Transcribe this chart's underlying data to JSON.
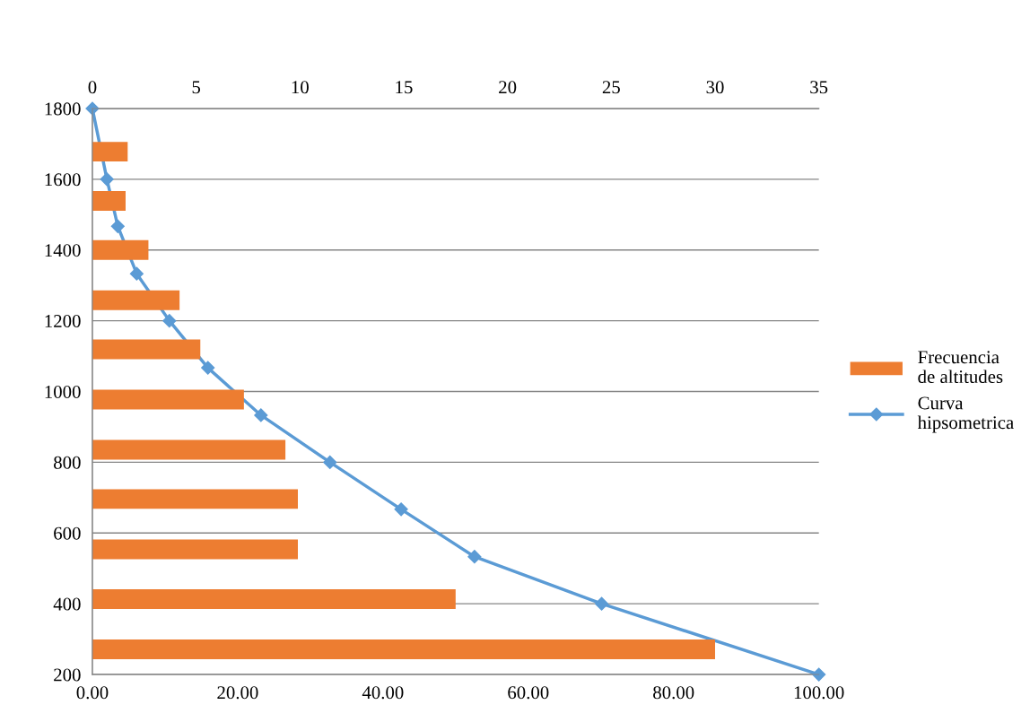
{
  "chart_data": {
    "type": "bar",
    "orientation": "horizontal",
    "ylim": [
      200,
      1800
    ],
    "yticks": [
      200,
      400,
      600,
      800,
      1000,
      1200,
      1400,
      1600,
      1800
    ],
    "xlim": [
      0,
      100
    ],
    "xticks": [
      {
        "value": 0,
        "label": "0.00"
      },
      {
        "value": 20,
        "label": "20.00"
      },
      {
        "value": 40,
        "label": "40.00"
      },
      {
        "value": 60,
        "label": "60.00"
      },
      {
        "value": 80,
        "label": "80.00"
      },
      {
        "value": 100,
        "label": "100.00"
      }
    ],
    "x2lim": [
      0,
      35
    ],
    "x2ticks": [
      0,
      5,
      10,
      15,
      20,
      25,
      30,
      35
    ],
    "grid": "y",
    "legend": "right",
    "series": [
      {
        "name": "Frecuencia de altitudes",
        "axis": "x2",
        "color": "#ed7d31",
        "x": [
          1678,
          1539,
          1400,
          1258,
          1119,
          977,
          835,
          696,
          554,
          413,
          271
        ],
        "values": [
          1.7,
          1.6,
          2.7,
          4.2,
          5.2,
          7.3,
          9.3,
          9.9,
          9.9,
          17.5,
          30.0
        ]
      },
      {
        "name": "Curva hipsometrica",
        "type": "line",
        "marker": "diamond",
        "line_style": "solid",
        "color": "#5b9bd5",
        "x": [
          1800,
          1600,
          1467,
          1333,
          1200,
          1067,
          933,
          800,
          667,
          533,
          400,
          200
        ],
        "values": [
          0,
          2.0,
          3.5,
          6.1,
          10.6,
          15.9,
          23.2,
          32.7,
          42.5,
          52.6,
          70.1,
          100
        ]
      }
    ]
  }
}
